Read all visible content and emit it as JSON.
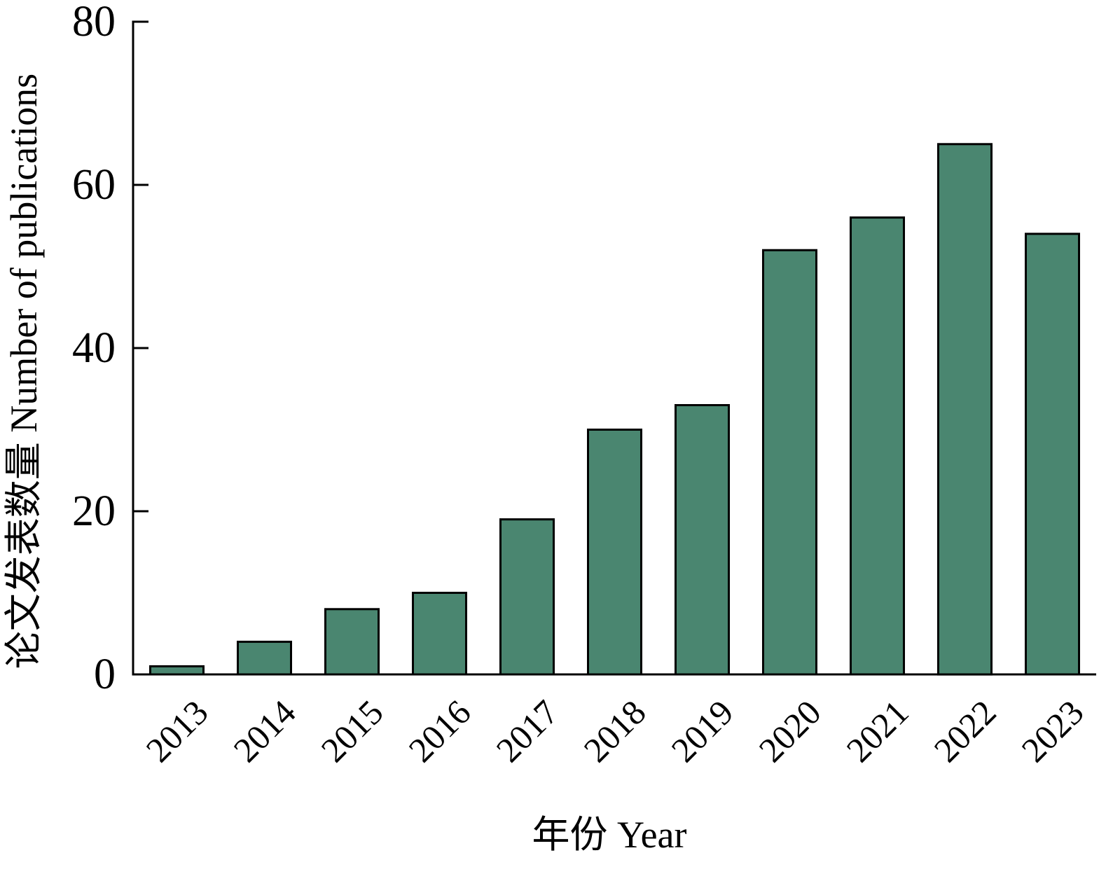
{
  "chart_data": {
    "type": "bar",
    "title": "",
    "xlabel": "年份 Year",
    "ylabel": "论文发表数量 Number of publications",
    "categories": [
      "2013",
      "2014",
      "2015",
      "2016",
      "2017",
      "2018",
      "2019",
      "2020",
      "2021",
      "2022",
      "2023"
    ],
    "values": [
      1,
      4,
      8,
      10,
      19,
      30,
      33,
      52,
      56,
      65,
      54
    ],
    "ylim": [
      0,
      80
    ],
    "yticks": [
      "0",
      "20",
      "40",
      "60",
      "80"
    ],
    "grid": false,
    "legend": "none",
    "bar_color": "#4a8670",
    "edge_color": "#000000"
  }
}
